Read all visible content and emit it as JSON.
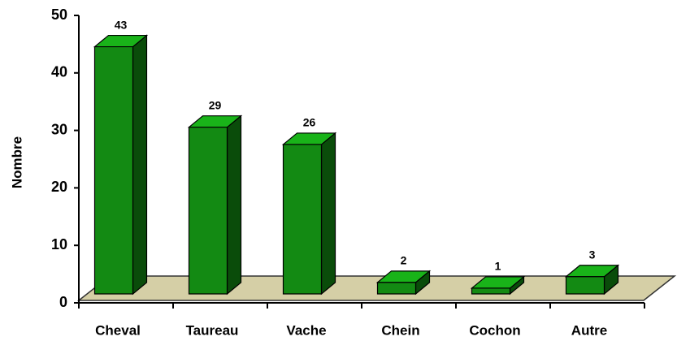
{
  "chart_data": {
    "type": "bar3d",
    "y_label": "Nombre",
    "categories": [
      "Cheval",
      "Taureau",
      "Vache",
      "Chein",
      "Cochon",
      "Autre"
    ],
    "values": [
      43,
      29,
      26,
      2,
      1,
      3
    ],
    "color": "#138a13",
    "ylim": [
      0,
      50
    ],
    "yticks": [
      0,
      10,
      20,
      30,
      40,
      50
    ],
    "grid": false
  }
}
